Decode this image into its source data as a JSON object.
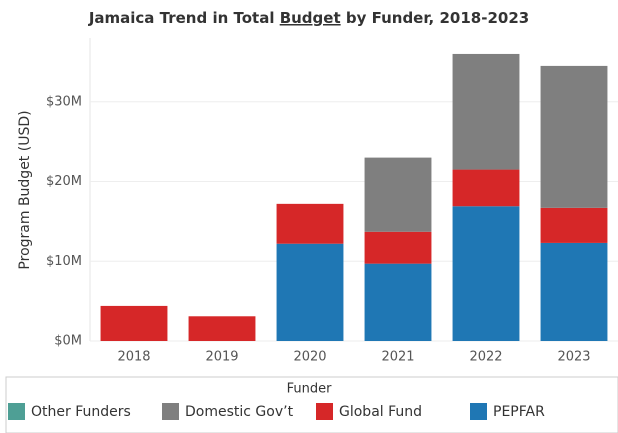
{
  "chart_data": {
    "type": "stacked_bar",
    "title_parts": [
      "Jamaica Trend in Total ",
      "Budget",
      " by Funder, 2018-2023"
    ],
    "y_label": "Program Budget (USD)",
    "legend_title": "Funder",
    "categories": [
      "2018",
      "2019",
      "2020",
      "2021",
      "2022",
      "2023"
    ],
    "series": [
      {
        "name": "PEPFAR",
        "color": "#1f77b4",
        "values": [
          0,
          0,
          12.2,
          9.7,
          16.9,
          12.3
        ]
      },
      {
        "name": "Global Fund",
        "color": "#d62728",
        "values": [
          4.4,
          3.1,
          5.0,
          4.0,
          4.6,
          4.4
        ]
      },
      {
        "name": "Domestic Gov’t",
        "color": "#7f7f7f",
        "values": [
          0,
          0,
          0,
          9.3,
          14.5,
          17.8
        ]
      },
      {
        "name": "Other Funders",
        "color": "#4e9f95",
        "values": [
          0,
          0,
          0,
          0,
          0,
          0
        ]
      }
    ],
    "legend_order": [
      3,
      2,
      1,
      0
    ],
    "ylim": [
      0,
      38
    ],
    "yticks": [
      {
        "value": 0,
        "label": "$0M"
      },
      {
        "value": 10,
        "label": "$10M"
      },
      {
        "value": 20,
        "label": "$20M"
      },
      {
        "value": 30,
        "label": "$30M"
      }
    ],
    "grid": true
  }
}
